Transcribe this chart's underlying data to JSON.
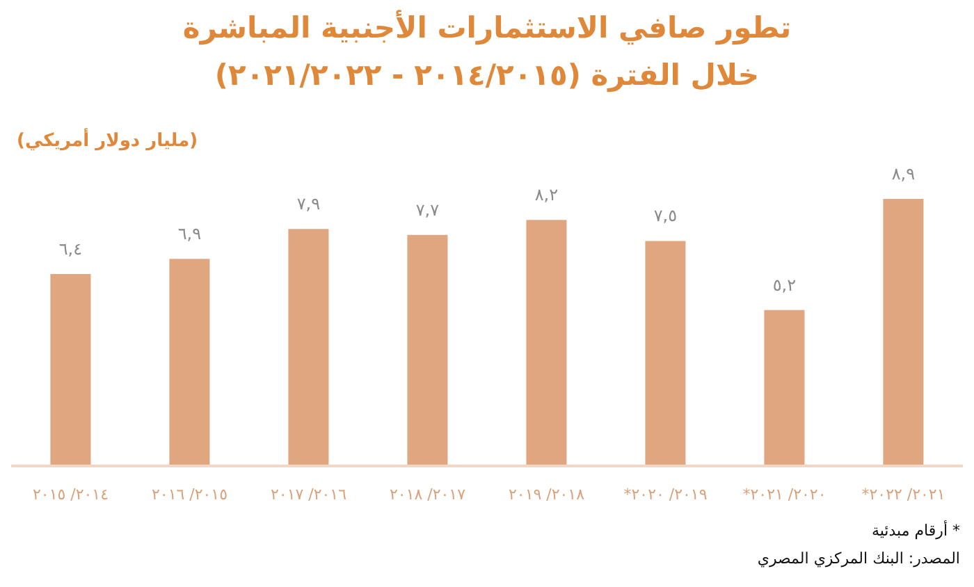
{
  "chart_data": {
    "type": "bar",
    "title": "تطور صافي الاستثمارات الأجنبية المباشرة",
    "subtitle": "خلال الفترة (٢٠١٤/٢٠١٥ - ٢٠٢١/٢٠٢٢)",
    "ylabel": "(مليار دولار أمريكي)",
    "categories": [
      "٢٠١٤/ ٢٠١٥",
      "٢٠١٥/ ٢٠١٦",
      "٢٠١٦/ ٢٠١٧",
      "٢٠١٧/ ٢٠١٨",
      "٢٠١٨/ ٢٠١٩",
      "٢٠١٩/ ٢٠٢٠*",
      "٢٠٢٠/ ٢٠٢١*",
      "٢٠٢١/ ٢٠٢٢*"
    ],
    "values": [
      6.4,
      6.9,
      7.9,
      7.7,
      8.2,
      7.5,
      5.2,
      8.9
    ],
    "value_labels": [
      "٦,٤",
      "٦,٩",
      "٧,٩",
      "٧,٧",
      "٨,٢",
      "٧,٥",
      "٥,٢",
      "٨,٩"
    ],
    "color": "#dfa67f",
    "grid": false,
    "legend": false,
    "annotations": [
      "* أرقام مبدئية",
      "المصدر: البنك المركزي المصري"
    ]
  }
}
